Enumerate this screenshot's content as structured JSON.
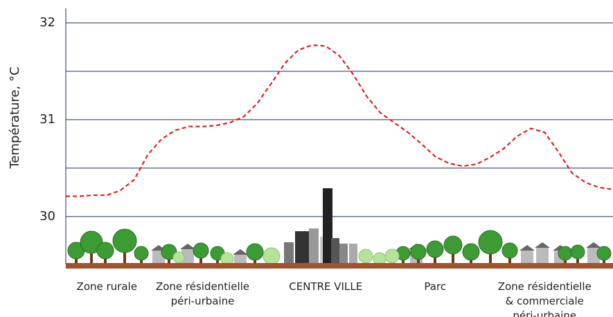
{
  "chart_data": {
    "type": "line",
    "y_label": "Température, °C",
    "categories": [
      null,
      null,
      null,
      "Zone rurale",
      null,
      null,
      null,
      null,
      null,
      null,
      "Zone résidentielle\npéri-urbaine",
      null,
      null,
      null,
      null,
      null,
      null,
      null,
      null,
      "CENTRE VILLE",
      null,
      null,
      null,
      null,
      null,
      null,
      null,
      "Parc",
      null,
      null,
      null,
      null,
      null,
      null,
      null,
      "Zone résidentielle\n& commerciale\npéri-urbaine",
      null,
      null,
      null,
      null,
      null
    ],
    "series": [
      {
        "name": null,
        "color": "#e0201b",
        "values": [
          30.21,
          30.21,
          30.22,
          30.22,
          30.27,
          30.38,
          30.64,
          30.8,
          30.89,
          30.93,
          30.93,
          30.94,
          30.97,
          31.03,
          31.17,
          31.37,
          31.58,
          31.72,
          31.77,
          31.76,
          31.66,
          31.47,
          31.24,
          31.07,
          30.97,
          30.87,
          30.75,
          30.62,
          30.55,
          30.52,
          30.54,
          30.61,
          30.7,
          30.83,
          30.91,
          30.87,
          30.67,
          30.45,
          30.35,
          30.3,
          30.28
        ]
      }
    ],
    "ylim": [
      29.52,
      32.15
    ],
    "yticks": [
      30,
      31,
      32
    ],
    "minor_yticks": [
      30.5,
      31.5
    ],
    "grid": true
  }
}
